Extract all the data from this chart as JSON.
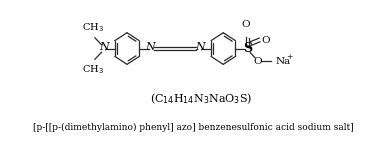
{
  "bg_color": "#ffffff",
  "line_color": "#2a2a2a",
  "text_color": "#000000",
  "font_size_struct": 7.5,
  "font_size_formula": 8.0,
  "font_size_iupac": 6.5,
  "formula_text": "(C$_{14}$H$_{14}$N$_3$NaO$_3$S)",
  "iupac_text": "[p-[[p-(dimethylamino) phenyl] azo] benzenesulfonic acid sodium salt]",
  "xlim": [
    0,
    10
  ],
  "ylim": [
    0,
    3.5
  ],
  "figsize": [
    3.9,
    1.47
  ],
  "dpi": 100
}
